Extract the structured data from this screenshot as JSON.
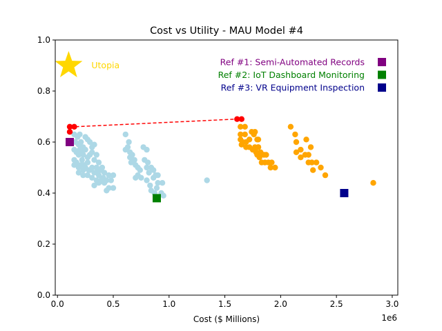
{
  "chart_data": {
    "type": "scatter",
    "title": "Cost vs Utility - MAU Model #4",
    "xlabel": "Cost ($ Millions)",
    "ylabel": "",
    "x_offset_label": "1e6",
    "xlim": [
      -20000,
      3050000
    ],
    "ylim": [
      0.0,
      1.0
    ],
    "xticks": [
      0,
      500000,
      1000000,
      1500000,
      2000000,
      2500000,
      3000000
    ],
    "xtick_labels": [
      "0.0",
      "0.5",
      "1.0",
      "1.5",
      "2.0",
      "2.5",
      "3.0"
    ],
    "yticks": [
      0.0,
      0.2,
      0.4,
      0.6,
      0.8,
      1.0
    ],
    "ytick_labels": [
      "0.0",
      "0.2",
      "0.4",
      "0.6",
      "0.8",
      "1.0"
    ],
    "grid": false,
    "utopia": {
      "label": "Utopia",
      "x": 100000,
      "y": 0.9,
      "color": "#FFD700"
    },
    "series": [
      {
        "color": "#ADD8E6",
        "points": [
          [
            150000,
            0.63
          ],
          [
            180000,
            0.62
          ],
          [
            200000,
            0.63
          ],
          [
            160000,
            0.6
          ],
          [
            190000,
            0.59
          ],
          [
            210000,
            0.6
          ],
          [
            230000,
            0.58
          ],
          [
            250000,
            0.62
          ],
          [
            270000,
            0.61
          ],
          [
            290000,
            0.6
          ],
          [
            310000,
            0.58
          ],
          [
            330000,
            0.59
          ],
          [
            150000,
            0.57
          ],
          [
            170000,
            0.56
          ],
          [
            190000,
            0.55
          ],
          [
            210000,
            0.56
          ],
          [
            230000,
            0.55
          ],
          [
            250000,
            0.57
          ],
          [
            270000,
            0.54
          ],
          [
            290000,
            0.55
          ],
          [
            310000,
            0.56
          ],
          [
            330000,
            0.53
          ],
          [
            350000,
            0.55
          ],
          [
            370000,
            0.52
          ],
          [
            150000,
            0.53
          ],
          [
            170000,
            0.52
          ],
          [
            190000,
            0.5
          ],
          [
            210000,
            0.51
          ],
          [
            230000,
            0.49
          ],
          [
            250000,
            0.5
          ],
          [
            270000,
            0.52
          ],
          [
            290000,
            0.49
          ],
          [
            310000,
            0.5
          ],
          [
            330000,
            0.48
          ],
          [
            350000,
            0.5
          ],
          [
            370000,
            0.47
          ],
          [
            390000,
            0.49
          ],
          [
            410000,
            0.46
          ],
          [
            150000,
            0.51
          ],
          [
            190000,
            0.48
          ],
          [
            230000,
            0.47
          ],
          [
            270000,
            0.47
          ],
          [
            310000,
            0.46
          ],
          [
            350000,
            0.45
          ],
          [
            390000,
            0.45
          ],
          [
            420000,
            0.48
          ],
          [
            440000,
            0.45
          ],
          [
            460000,
            0.47
          ],
          [
            480000,
            0.45
          ],
          [
            500000,
            0.47
          ],
          [
            330000,
            0.43
          ],
          [
            370000,
            0.44
          ],
          [
            420000,
            0.44
          ],
          [
            440000,
            0.41
          ],
          [
            460000,
            0.42
          ],
          [
            500000,
            0.42
          ],
          [
            400000,
            0.5
          ],
          [
            360000,
            0.48
          ],
          [
            280000,
            0.49
          ],
          [
            220000,
            0.53
          ],
          [
            200000,
            0.57
          ],
          [
            240000,
            0.51
          ],
          [
            610000,
            0.63
          ],
          [
            640000,
            0.6
          ],
          [
            610000,
            0.57
          ],
          [
            630000,
            0.58
          ],
          [
            650000,
            0.56
          ],
          [
            650000,
            0.54
          ],
          [
            670000,
            0.55
          ],
          [
            690000,
            0.53
          ],
          [
            700000,
            0.51
          ],
          [
            720000,
            0.5
          ],
          [
            740000,
            0.49
          ],
          [
            660000,
            0.52
          ],
          [
            700000,
            0.46
          ],
          [
            720000,
            0.47
          ],
          [
            750000,
            0.46
          ],
          [
            770000,
            0.58
          ],
          [
            800000,
            0.57
          ],
          [
            780000,
            0.53
          ],
          [
            800000,
            0.5
          ],
          [
            810000,
            0.52
          ],
          [
            820000,
            0.48
          ],
          [
            840000,
            0.5
          ],
          [
            860000,
            0.49
          ],
          [
            860000,
            0.46
          ],
          [
            800000,
            0.45
          ],
          [
            830000,
            0.43
          ],
          [
            840000,
            0.41
          ],
          [
            870000,
            0.4
          ],
          [
            890000,
            0.42
          ],
          [
            900000,
            0.44
          ],
          [
            930000,
            0.4
          ],
          [
            950000,
            0.39
          ],
          [
            940000,
            0.44
          ],
          [
            880000,
            0.47
          ],
          [
            900000,
            0.47
          ],
          [
            1340000,
            0.45
          ]
        ]
      },
      {
        "color": "#FFA500",
        "points": [
          [
            1640000,
            0.66
          ],
          [
            1680000,
            0.66
          ],
          [
            1640000,
            0.63
          ],
          [
            1680000,
            0.63
          ],
          [
            1640000,
            0.61
          ],
          [
            1660000,
            0.6
          ],
          [
            1690000,
            0.6
          ],
          [
            1720000,
            0.61
          ],
          [
            1740000,
            0.64
          ],
          [
            1770000,
            0.64
          ],
          [
            1650000,
            0.59
          ],
          [
            1690000,
            0.58
          ],
          [
            1720000,
            0.58
          ],
          [
            1750000,
            0.57
          ],
          [
            1770000,
            0.58
          ],
          [
            1790000,
            0.61
          ],
          [
            1800000,
            0.61
          ],
          [
            1760000,
            0.63
          ],
          [
            1780000,
            0.56
          ],
          [
            1800000,
            0.58
          ],
          [
            1820000,
            0.56
          ],
          [
            1850000,
            0.55
          ],
          [
            1870000,
            0.55
          ],
          [
            1790000,
            0.55
          ],
          [
            1810000,
            0.54
          ],
          [
            1830000,
            0.52
          ],
          [
            1860000,
            0.52
          ],
          [
            1890000,
            0.52
          ],
          [
            1910000,
            0.5
          ],
          [
            1950000,
            0.5
          ],
          [
            1920000,
            0.52
          ],
          [
            1800000,
            0.58
          ],
          [
            2090000,
            0.66
          ],
          [
            2130000,
            0.63
          ],
          [
            2140000,
            0.6
          ],
          [
            2180000,
            0.57
          ],
          [
            2140000,
            0.56
          ],
          [
            2180000,
            0.54
          ],
          [
            2220000,
            0.55
          ],
          [
            2250000,
            0.55
          ],
          [
            2250000,
            0.52
          ],
          [
            2280000,
            0.52
          ],
          [
            2290000,
            0.49
          ],
          [
            2320000,
            0.52
          ],
          [
            2360000,
            0.5
          ],
          [
            2400000,
            0.47
          ],
          [
            2230000,
            0.61
          ],
          [
            2270000,
            0.58
          ],
          [
            2830000,
            0.44
          ]
        ]
      }
    ],
    "frontier": {
      "color": "#FF0000",
      "style": "dashed",
      "points": [
        [
          110000,
          0.64
        ],
        [
          110000,
          0.66
        ],
        [
          150000,
          0.66
        ],
        [
          1610000,
          0.69
        ],
        [
          1650000,
          0.69
        ]
      ]
    },
    "references": [
      {
        "name": "Ref #1: Semi-Automated Records",
        "x": 110000,
        "y": 0.6,
        "color": "#800080",
        "label_color": "#800080"
      },
      {
        "name": "Ref #2: IoT Dashboard Monitoring",
        "x": 890000,
        "y": 0.38,
        "color": "#008000",
        "label_color": "#008000"
      },
      {
        "name": "Ref #3: VR Equipment Inspection",
        "x": 2570000,
        "y": 0.4,
        "color": "#00008B",
        "label_color": "#00008B"
      }
    ],
    "legend_position": "top-right"
  }
}
